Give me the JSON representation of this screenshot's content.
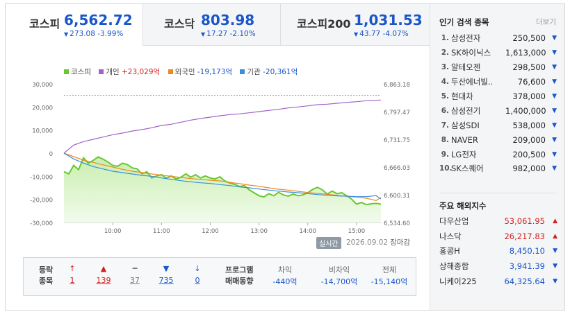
{
  "tabs": [
    {
      "name": "코스피",
      "value": "6,562.72",
      "change": "273.08",
      "pct": "-3.99%",
      "arrow": "▼"
    },
    {
      "name": "코스닥",
      "value": "803.98",
      "change": "17.27",
      "pct": "-2.10%",
      "arrow": "▼"
    },
    {
      "name": "코스피200",
      "value": "1,031.53",
      "change": "43.77",
      "pct": "-4.07%",
      "arrow": "▼"
    }
  ],
  "legend": {
    "kospi": "코스피",
    "individual_label": "개인",
    "individual_value": "+23,029억",
    "foreign_label": "외국인",
    "foreign_value": "-19,173억",
    "institution_label": "기관",
    "institution_value": "-20,361억"
  },
  "colors": {
    "kospi": "#6ac72d",
    "individual": "#a062c8",
    "foreign": "#e98a22",
    "institution": "#3b8fd8",
    "up": "#d42020",
    "down": "#1a56c9"
  },
  "chart_data": {
    "type": "line",
    "x_ticks": [
      "10:00",
      "11:00",
      "12:00",
      "13:00",
      "14:00",
      "15:00"
    ],
    "y_left_ticks": [
      "30,000",
      "20,000",
      "10,000",
      "0",
      "-10,000",
      "-20,000",
      "-30,000"
    ],
    "y_left_range": [
      -30000,
      30000
    ],
    "y_right_ticks": [
      "6,863.18",
      "6,797.47",
      "6,731.75",
      "6,666.03",
      "6,600.31",
      "6,534.60"
    ],
    "y_right_range": [
      6534.6,
      6863.18
    ],
    "reference_line_right": 6835.8,
    "series": [
      {
        "name": "코스피",
        "axis": "right",
        "color": "#6ac72d",
        "x": [
          9.0,
          9.1,
          9.2,
          9.3,
          9.4,
          9.5,
          9.6,
          9.7,
          9.8,
          9.9,
          10.0,
          10.1,
          10.2,
          10.3,
          10.4,
          10.5,
          10.6,
          10.7,
          10.8,
          10.9,
          11.0,
          11.1,
          11.2,
          11.3,
          11.4,
          11.5,
          11.6,
          11.7,
          11.8,
          11.9,
          12.0,
          12.1,
          12.2,
          12.3,
          12.4,
          12.5,
          12.6,
          12.7,
          12.8,
          12.9,
          13.0,
          13.1,
          13.2,
          13.3,
          13.4,
          13.5,
          13.6,
          13.7,
          13.8,
          13.9,
          14.0,
          14.1,
          14.2,
          14.3,
          14.4,
          14.5,
          14.6,
          14.7,
          14.8,
          14.9,
          15.0,
          15.1,
          15.2,
          15.3,
          15.4,
          15.5
        ],
        "y": [
          6655,
          6650,
          6670,
          6660,
          6688,
          6675,
          6682,
          6690,
          6685,
          6678,
          6670,
          6668,
          6675,
          6672,
          6664,
          6662,
          6650,
          6655,
          6640,
          6645,
          6648,
          6640,
          6645,
          6638,
          6642,
          6650,
          6642,
          6648,
          6640,
          6645,
          6640,
          6638,
          6643,
          6633,
          6628,
          6625,
          6620,
          6622,
          6612,
          6605,
          6598,
          6595,
          6603,
          6598,
          6606,
          6600,
          6597,
          6602,
          6598,
          6600,
          6605,
          6613,
          6618,
          6612,
          6602,
          6609,
          6603,
          6605,
          6598,
          6590,
          6578,
          6582,
          6577,
          6579,
          6580,
          6578
        ]
      },
      {
        "name": "개인",
        "axis": "left",
        "color": "#a062c8",
        "x": [
          9.0,
          9.2,
          9.4,
          9.6,
          9.8,
          10.0,
          10.2,
          10.4,
          10.6,
          10.8,
          11.0,
          11.2,
          11.4,
          11.6,
          11.8,
          12.0,
          12.2,
          12.4,
          12.6,
          12.8,
          13.0,
          13.2,
          13.4,
          13.6,
          13.8,
          14.0,
          14.2,
          14.4,
          14.6,
          14.8,
          15.0,
          15.2,
          15.5
        ],
        "y": [
          0,
          3500,
          5000,
          6000,
          7000,
          8000,
          8700,
          9600,
          10200,
          11000,
          12000,
          12500,
          13400,
          14300,
          15000,
          15600,
          16200,
          16700,
          17000,
          17500,
          18000,
          18500,
          19000,
          19600,
          20000,
          20500,
          21000,
          21200,
          21600,
          22000,
          22300,
          22700,
          23000
        ]
      },
      {
        "name": "외국인",
        "axis": "left",
        "color": "#e98a22",
        "x": [
          9.0,
          9.2,
          9.4,
          9.6,
          9.8,
          10.0,
          10.2,
          10.4,
          10.6,
          10.8,
          11.0,
          11.2,
          11.4,
          11.6,
          11.8,
          12.0,
          12.2,
          12.4,
          12.6,
          12.8,
          13.0,
          13.2,
          13.4,
          13.6,
          13.8,
          14.0,
          14.2,
          14.4,
          14.6,
          14.8,
          15.0,
          15.2,
          15.4,
          15.5
        ],
        "y": [
          0,
          -1500,
          -3000,
          -4000,
          -5000,
          -6000,
          -7000,
          -7800,
          -8400,
          -9000,
          -9500,
          -10000,
          -10500,
          -11000,
          -11300,
          -11700,
          -12000,
          -12600,
          -13200,
          -13800,
          -14300,
          -15000,
          -15600,
          -16000,
          -16500,
          -17000,
          -17400,
          -17800,
          -18200,
          -18700,
          -19000,
          -19500,
          -20500,
          -19200
        ]
      },
      {
        "name": "기관",
        "axis": "left",
        "color": "#3b8fd8",
        "x": [
          9.0,
          9.2,
          9.4,
          9.6,
          9.8,
          10.0,
          10.2,
          10.4,
          10.6,
          10.8,
          11.0,
          11.2,
          11.4,
          11.6,
          11.8,
          12.0,
          12.2,
          12.4,
          12.6,
          12.8,
          13.0,
          13.2,
          13.4,
          13.6,
          13.8,
          14.0,
          14.2,
          14.4,
          14.6,
          14.8,
          15.0,
          15.2,
          15.4,
          15.5
        ],
        "y": [
          0,
          -2500,
          -4300,
          -5800,
          -6800,
          -7800,
          -8400,
          -9000,
          -9600,
          -10000,
          -10700,
          -11300,
          -11900,
          -12400,
          -12800,
          -13100,
          -13600,
          -14000,
          -14600,
          -15000,
          -15500,
          -16000,
          -16400,
          -16800,
          -17100,
          -17500,
          -17900,
          -18200,
          -18500,
          -18600,
          -18800,
          -18800,
          -18400,
          -19800
        ]
      }
    ]
  },
  "realtime_badge": "실시간",
  "date": "2026.09.02",
  "market_status": "장마감",
  "stats": {
    "header_line1": "등락",
    "header_line2": "종목",
    "columns": [
      {
        "icon": "↑",
        "value": "1",
        "cls": "up"
      },
      {
        "icon": "▲",
        "value": "139",
        "cls": "up"
      },
      {
        "icon": "━",
        "value": "37",
        "cls": "fl"
      },
      {
        "icon": "▼",
        "value": "735",
        "cls": "dn"
      },
      {
        "icon": "↓",
        "value": "0",
        "cls": "dn"
      }
    ],
    "program_line1": "프로그램",
    "program_line2": "매매동향",
    "program": [
      {
        "label": "차익",
        "value": "-440억"
      },
      {
        "label": "비차익",
        "value": "-14,700억"
      },
      {
        "label": "전체",
        "value": "-15,140억"
      }
    ]
  },
  "popular": {
    "title": "인기 검색 종목",
    "more": "더보기",
    "items": [
      {
        "rank": "1.",
        "name": "삼성전자",
        "price": "250,500"
      },
      {
        "rank": "2.",
        "name": "SK하이닉스",
        "price": "1,613,000"
      },
      {
        "rank": "3.",
        "name": "알테오젠",
        "price": "298,500"
      },
      {
        "rank": "4.",
        "name": "두산에너빌..",
        "price": "76,600"
      },
      {
        "rank": "5.",
        "name": "현대차",
        "price": "378,000"
      },
      {
        "rank": "6.",
        "name": "삼성전기",
        "price": "1,400,000"
      },
      {
        "rank": "7.",
        "name": "삼성SDI",
        "price": "538,000"
      },
      {
        "rank": "8.",
        "name": "NAVER",
        "price": "209,000"
      },
      {
        "rank": "9.",
        "name": "LG전자",
        "price": "200,500"
      },
      {
        "rank": "10.",
        "name": "SK스퀘어",
        "price": "982,000"
      }
    ],
    "arrow": "▼"
  },
  "global": {
    "title": "주요 해외지수",
    "items": [
      {
        "name": "다우산업",
        "value": "53,061.95",
        "arrow": "▲",
        "cls": "up"
      },
      {
        "name": "나스닥",
        "value": "26,217.83",
        "arrow": "▲",
        "cls": "up"
      },
      {
        "name": "홍콩H",
        "value": "8,450.10",
        "arrow": "▼",
        "cls": "dn"
      },
      {
        "name": "상해종합",
        "value": "3,941.39",
        "arrow": "▼",
        "cls": "dn"
      },
      {
        "name": "니케이225",
        "value": "64,325.64",
        "arrow": "▼",
        "cls": "dn"
      }
    ]
  }
}
